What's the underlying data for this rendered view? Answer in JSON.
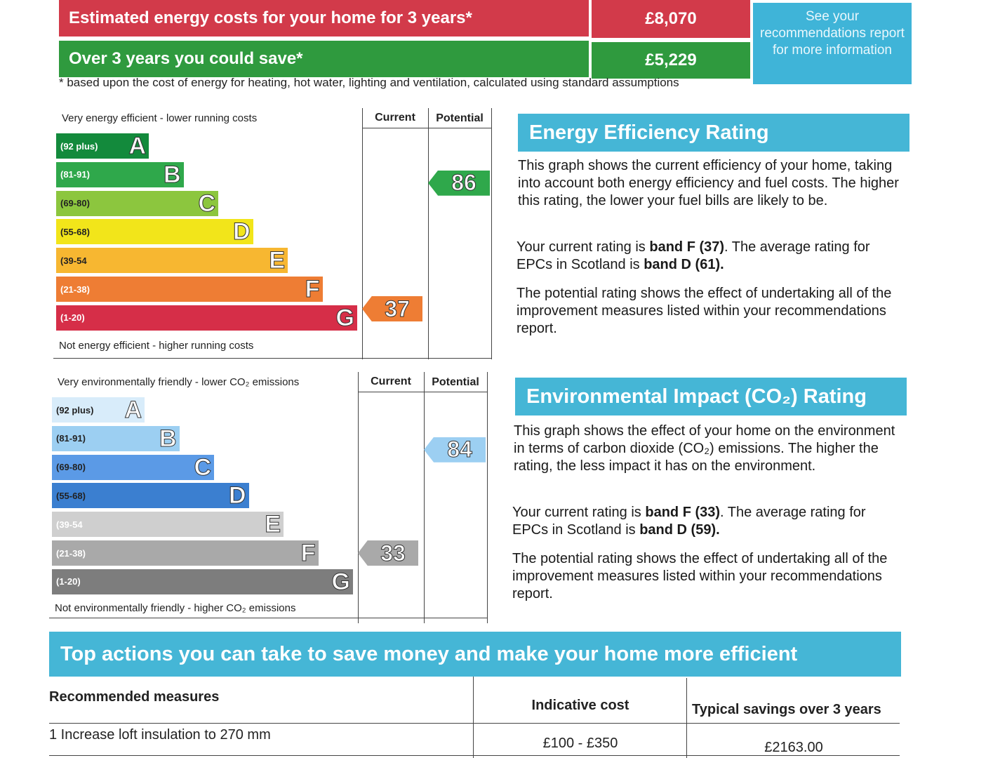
{
  "costs": {
    "row1_label": "Estimated energy costs for your home for 3 years*",
    "row1_value": "£8,070",
    "row2_label": "Over 3 years you could save*",
    "row2_value": "£5,229",
    "see_report": "See your recommendations report for more information",
    "footnote": "* based upon the cost of energy for heating, hot water, lighting and ventilation, calculated using standard assumptions"
  },
  "energy_chart": {
    "top_caption": "Very energy efficient - lower running costs",
    "bottom_caption": "Not energy efficient - higher running costs",
    "col_current": "Current",
    "col_potential": "Potential",
    "bands": [
      {
        "range": "(92 plus)",
        "letter": "A",
        "color": "#138a3c"
      },
      {
        "range": "(81-91)",
        "letter": "B",
        "color": "#2fa84b"
      },
      {
        "range": "(69-80)",
        "letter": "C",
        "color": "#8cc63e"
      },
      {
        "range": "(55-68)",
        "letter": "D",
        "color": "#f2e51a"
      },
      {
        "range": "(39-54",
        "letter": "E",
        "color": "#f7b731"
      },
      {
        "range": "(21-38)",
        "letter": "F",
        "color": "#ee7d34"
      },
      {
        "range": "(1-20)",
        "letter": "G",
        "color": "#d62e48"
      }
    ],
    "current": {
      "value": "37",
      "band": 5,
      "color": "#ee7d34"
    },
    "potential": {
      "value": "86",
      "band": 1,
      "color": "#2fa84b"
    }
  },
  "env_chart": {
    "top_caption": "Very environmentally friendly - lower CO₂ emissions",
    "bottom_caption": "Not environmentally friendly - higher CO₂ emissions",
    "col_current": "Current",
    "col_potential": "Potential",
    "bands": [
      {
        "range": "(92 plus)",
        "letter": "A",
        "color": "#d8ecfa"
      },
      {
        "range": "(81-91)",
        "letter": "B",
        "color": "#9ccff2"
      },
      {
        "range": "(69-80)",
        "letter": "C",
        "color": "#5b9ae6"
      },
      {
        "range": "(55-68)",
        "letter": "D",
        "color": "#3b7fd0"
      },
      {
        "range": "(39-54",
        "letter": "E",
        "color": "#cfcfcf"
      },
      {
        "range": "(21-38)",
        "letter": "F",
        "color": "#a9a9a9"
      },
      {
        "range": "(1-20)",
        "letter": "G",
        "color": "#7d7d7d"
      }
    ],
    "current": {
      "value": "33",
      "band": 5,
      "color": "#a9a9a9"
    },
    "potential": {
      "value": "84",
      "band": 1,
      "color": "#9ccff2"
    }
  },
  "eer_panel": {
    "title": "Energy Efficiency Rating",
    "p1": "This graph shows the current efficiency of your home, taking into account both energy efficiency and fuel costs. The higher this rating, the lower your fuel bills are likely to be.",
    "p2_pre": "Your current rating is ",
    "p2_b1": "band F (37)",
    "p2_mid": ". The average rating for EPCs in Scotland is ",
    "p2_b2": "band D (61).",
    "p3": "The potential rating shows the effect of undertaking all of the improvement measures listed within your recommendations report."
  },
  "eir_panel": {
    "title": "Environmental Impact (CO₂) Rating",
    "p1": "This graph shows the effect of your home on the environment in terms of carbon dioxide (CO₂) emissions. The higher the rating, the less impact it has on the environment.",
    "p2_pre": "Your current rating is ",
    "p2_b1": "band F (33)",
    "p2_mid": ". The average rating for EPCs in Scotland is ",
    "p2_b2": "band D (59).",
    "p3": "The potential rating shows the effect of undertaking all of the improvement measures listed within your recommendations report."
  },
  "actions": {
    "title": "Top actions you can take to save money and make your home more efficient",
    "col_measures": "Recommended measures",
    "col_cost": "Indicative cost",
    "col_savings": "Typical savings over 3 years",
    "rows": [
      {
        "measure": "1 Increase loft insulation to 270 mm",
        "cost": "£100 - £350",
        "savings": "£2163.00"
      }
    ]
  }
}
